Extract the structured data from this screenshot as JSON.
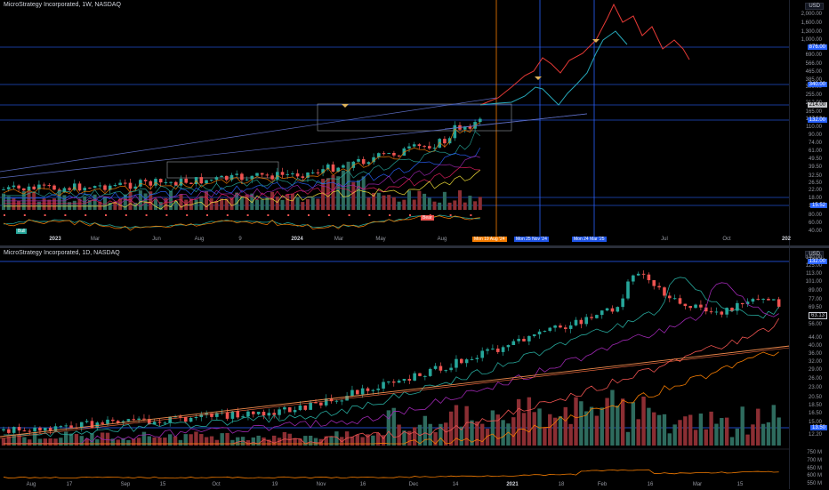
{
  "top_pane": {
    "title": "MicroStrategy Incorporated, 1W, NASDAQ",
    "currency": "USD",
    "price_ticks": [
      "2,000.00",
      "1,600.00",
      "1,300.00",
      "1,000.00",
      "690.00",
      "566.00",
      "465.00",
      "385.00",
      "300.00",
      "255.00",
      "212.00",
      "165.00",
      "137.00",
      "110.00",
      "90.00",
      "74.00",
      "61.00",
      "49.50",
      "39.50",
      "32.50",
      "26.50",
      "22.00",
      "18.00",
      "14.50",
      "80.00",
      "60.00",
      "40.00"
    ],
    "price_labels": [
      {
        "text": "876.00",
        "color": "#2962ff"
      },
      {
        "text": "340.00",
        "color": "#2962ff"
      },
      {
        "text": "214.00",
        "color": "#c2c3c6"
      },
      {
        "text": "132.00",
        "color": "#2962ff"
      },
      {
        "text": "15.52",
        "color": "#2962ff"
      }
    ],
    "x_ticks": [
      {
        "label": "2023",
        "bold": true
      },
      {
        "label": "Mar",
        "bold": false
      },
      {
        "label": "Jun",
        "bold": false
      },
      {
        "label": "Aug",
        "bold": false
      },
      {
        "label": "9",
        "bold": false
      },
      {
        "label": "2024",
        "bold": true
      },
      {
        "label": "Mar",
        "bold": false
      },
      {
        "label": "May",
        "bold": false
      },
      {
        "label": "Aug",
        "bold": false
      },
      {
        "label": "Jul",
        "bold": false
      },
      {
        "label": "Oct",
        "bold": false
      },
      {
        "label": "202",
        "bold": true
      }
    ],
    "vertical_tags": [
      {
        "text": "Mon 19 Aug '24",
        "color": "#f57c00"
      },
      {
        "text": "Mon 25 Nov '24",
        "color": "#1e53e5"
      },
      {
        "text": "Mon 24 Mar '25",
        "color": "#1e53e5"
      }
    ],
    "bull_badge": "Bull",
    "bear_badge": "Bear"
  },
  "bottom_pane": {
    "title": "MicroStrategy Incorporated, 1D, NASDAQ",
    "currency": "USD",
    "price_ticks": [
      "140.00",
      "125.00",
      "113.00",
      "101.00",
      "89.00",
      "77.00",
      "69.50",
      "63.00",
      "56.00",
      "44.00",
      "40.00",
      "36.00",
      "32.00",
      "29.00",
      "26.00",
      "23.00",
      "20.50",
      "18.50",
      "16.50",
      "15.00",
      "12.20",
      "750 M",
      "700 M",
      "650 M",
      "600 M",
      "550 M"
    ],
    "price_labels": [
      {
        "text": "132.00",
        "color": "#2962ff"
      },
      {
        "text": "63.13",
        "color": "#000000"
      },
      {
        "text": "13.50",
        "color": "#2962ff"
      }
    ],
    "x_ticks": [
      "Aug",
      "17",
      "Sep",
      "15",
      "Oct",
      "19",
      "Nov",
      "16",
      "Dec",
      "14",
      "2021",
      "18",
      "Feb",
      "16",
      "Mar",
      "15"
    ]
  },
  "colors": {
    "up": "#26a69a",
    "down": "#ef5350",
    "bg": "#000000",
    "grid": "#1e222d",
    "blue": "#2962ff",
    "orange": "#f57c00"
  }
}
